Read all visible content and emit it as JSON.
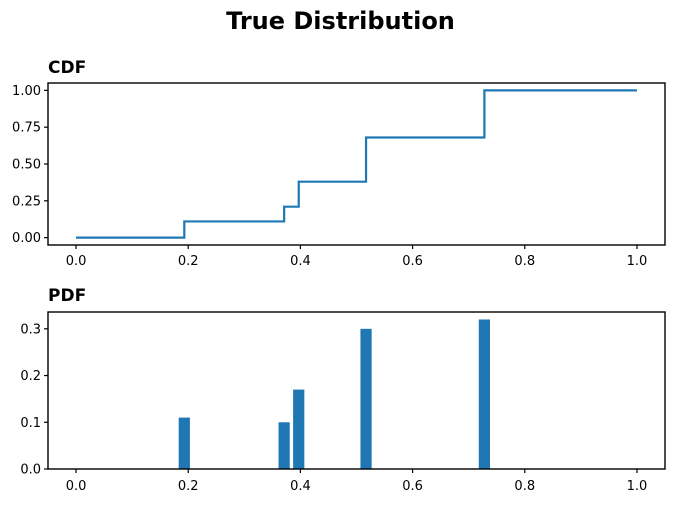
{
  "title": "True Distribution",
  "colors": {
    "series": "#1f77b4",
    "axis": "#000000",
    "text": "#000000",
    "background": "#ffffff"
  },
  "chart_data": [
    {
      "id": "cdf",
      "type": "line",
      "subtitle": "CDF",
      "step": "post",
      "x": [
        0.0,
        0.193,
        0.371,
        0.397,
        0.517,
        0.728,
        1.0
      ],
      "y": [
        0.0,
        0.11,
        0.21,
        0.38,
        0.68,
        1.0,
        1.0
      ],
      "xlim": [
        -0.05,
        1.05
      ],
      "ylim": [
        -0.05,
        1.05
      ],
      "xticks": {
        "values": [
          0.0,
          0.2,
          0.4,
          0.6,
          0.8,
          1.0
        ],
        "labels": [
          "0.0",
          "0.2",
          "0.4",
          "0.6",
          "0.8",
          "1.0"
        ]
      },
      "yticks": {
        "values": [
          0.0,
          0.25,
          0.5,
          0.75,
          1.0
        ],
        "labels": [
          "0.00",
          "0.25",
          "0.50",
          "0.75",
          "1.00"
        ]
      },
      "grid": false,
      "legend": null
    },
    {
      "id": "pdf",
      "type": "bar",
      "subtitle": "PDF",
      "x": [
        0.193,
        0.371,
        0.397,
        0.517,
        0.728
      ],
      "values": [
        0.11,
        0.1,
        0.17,
        0.3,
        0.32
      ],
      "bar_width": 0.02,
      "xlim": [
        -0.05,
        1.05
      ],
      "ylim": [
        0,
        0.336
      ],
      "xticks": {
        "values": [
          0.0,
          0.2,
          0.4,
          0.6,
          0.8,
          1.0
        ],
        "labels": [
          "0.0",
          "0.2",
          "0.4",
          "0.6",
          "0.8",
          "1.0"
        ]
      },
      "yticks": {
        "values": [
          0.0,
          0.1,
          0.2,
          0.3
        ],
        "labels": [
          "0.0",
          "0.1",
          "0.2",
          "0.3"
        ]
      },
      "grid": false,
      "legend": null
    }
  ]
}
